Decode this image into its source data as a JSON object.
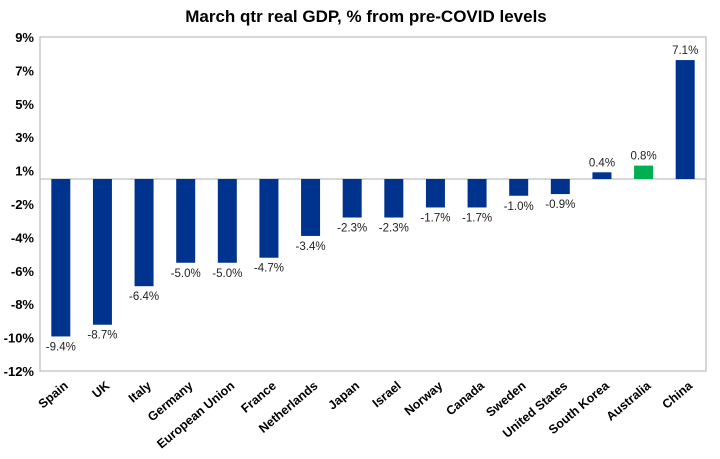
{
  "chart_data": {
    "type": "bar",
    "title": "March qtr real GDP, % from pre-COVID levels",
    "xlabel": "",
    "ylabel": "",
    "ylim": [
      -12,
      9
    ],
    "y_tick_labels": [
      "9%",
      "7%",
      "5%",
      "3%",
      "1%",
      "-2%",
      "-4%",
      "-6%",
      "-8%",
      "-10%",
      "-12%"
    ],
    "grid": false,
    "legend": "none",
    "categories": [
      "Spain",
      "UK",
      "Italy",
      "Germany",
      "European Union",
      "France",
      "Netherlands",
      "Japan",
      "Israel",
      "Norway",
      "Canada",
      "Sweden",
      "United States",
      "South Korea",
      "Australia",
      "China"
    ],
    "values": [
      -9.4,
      -8.7,
      -6.4,
      -5.0,
      -5.0,
      -4.7,
      -3.4,
      -2.3,
      -2.3,
      -1.7,
      -1.7,
      -1.0,
      -0.9,
      0.4,
      0.8,
      7.1
    ],
    "data_labels": [
      "-9.4%",
      "-8.7%",
      "-6.4%",
      "-5.0%",
      "-5.0%",
      "-4.7%",
      "-3.4%",
      "-2.3%",
      "-2.3%",
      "-1.7%",
      "-1.7%",
      "-1.0%",
      "-0.9%",
      "0.4%",
      "0.8%",
      "7.1%"
    ],
    "colors": {
      "default_bar": "#00338D",
      "highlight_bar": "#00B050",
      "axis": "#BFBFBF"
    },
    "highlight_category": "Australia"
  }
}
